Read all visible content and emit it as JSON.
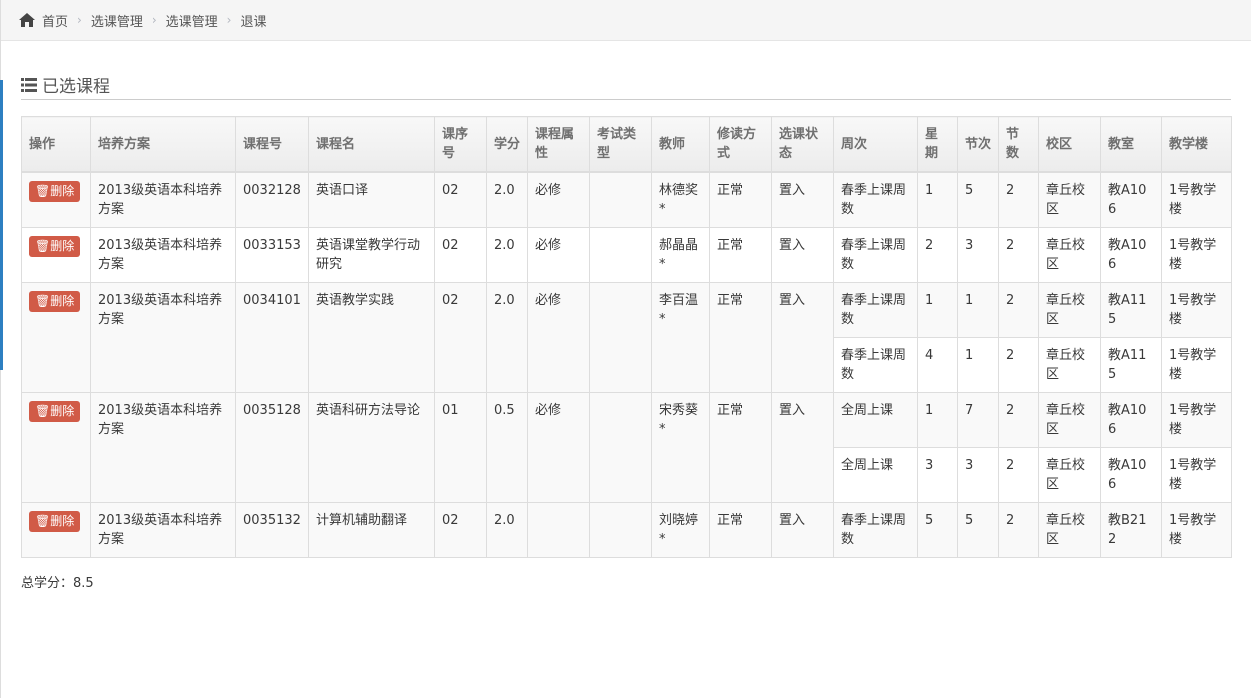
{
  "breadcrumb": [
    "首页",
    "选课管理",
    "选课管理",
    "退课"
  ],
  "section_title": "已选课程",
  "columns": [
    "操作",
    "培养方案",
    "课程号",
    "课程名",
    "课序号",
    "学分",
    "课程属性",
    "考试类型",
    "教师",
    "修读方式",
    "选课状态",
    "周次",
    "星期",
    "节次",
    "节数",
    "校区",
    "教室",
    "教学楼"
  ],
  "delete_label": "删除",
  "courses": [
    {
      "plan": "2013级英语本科培养方案",
      "code": "0032128",
      "name": "英语口译",
      "seq": "02",
      "credit": "2.0",
      "attr": "必修",
      "exam": "",
      "teacher": "林德奖*",
      "mode": "正常",
      "status": "置入",
      "sessions": [
        {
          "week": "春季上课周数",
          "day": "1",
          "period": "5",
          "count": "2",
          "campus": "章丘校区",
          "room": "教A106",
          "building": "1号教学楼"
        }
      ]
    },
    {
      "plan": "2013级英语本科培养方案",
      "code": "0033153",
      "name": "英语课堂教学行动研究",
      "seq": "02",
      "credit": "2.0",
      "attr": "必修",
      "exam": "",
      "teacher": "郝晶晶*",
      "mode": "正常",
      "status": "置入",
      "sessions": [
        {
          "week": "春季上课周数",
          "day": "2",
          "period": "3",
          "count": "2",
          "campus": "章丘校区",
          "room": "教A106",
          "building": "1号教学楼"
        }
      ]
    },
    {
      "plan": "2013级英语本科培养方案",
      "code": "0034101",
      "name": "英语教学实践",
      "seq": "02",
      "credit": "2.0",
      "attr": "必修",
      "exam": "",
      "teacher": "李百温*",
      "mode": "正常",
      "status": "置入",
      "sessions": [
        {
          "week": "春季上课周数",
          "day": "1",
          "period": "1",
          "count": "2",
          "campus": "章丘校区",
          "room": "教A115",
          "building": "1号教学楼"
        },
        {
          "week": "春季上课周数",
          "day": "4",
          "period": "1",
          "count": "2",
          "campus": "章丘校区",
          "room": "教A115",
          "building": "1号教学楼"
        }
      ]
    },
    {
      "plan": "2013级英语本科培养方案",
      "code": "0035128",
      "name": "英语科研方法导论",
      "seq": "01",
      "credit": "0.5",
      "attr": "必修",
      "exam": "",
      "teacher": "宋秀葵*",
      "mode": "正常",
      "status": "置入",
      "sessions": [
        {
          "week": "全周上课",
          "day": "1",
          "period": "7",
          "count": "2",
          "campus": "章丘校区",
          "room": "教A106",
          "building": "1号教学楼"
        },
        {
          "week": "全周上课",
          "day": "3",
          "period": "3",
          "count": "2",
          "campus": "章丘校区",
          "room": "教A106",
          "building": "1号教学楼"
        }
      ]
    },
    {
      "plan": "2013级英语本科培养方案",
      "code": "0035132",
      "name": "计算机辅助翻译",
      "seq": "02",
      "credit": "2.0",
      "attr": "",
      "exam": "",
      "teacher": "刘晓婷*",
      "mode": "正常",
      "status": "置入",
      "sessions": [
        {
          "week": "春季上课周数",
          "day": "5",
          "period": "5",
          "count": "2",
          "campus": "章丘校区",
          "room": "教B212",
          "building": "1号教学楼"
        }
      ]
    }
  ],
  "total_credits": "总学分：8.5"
}
